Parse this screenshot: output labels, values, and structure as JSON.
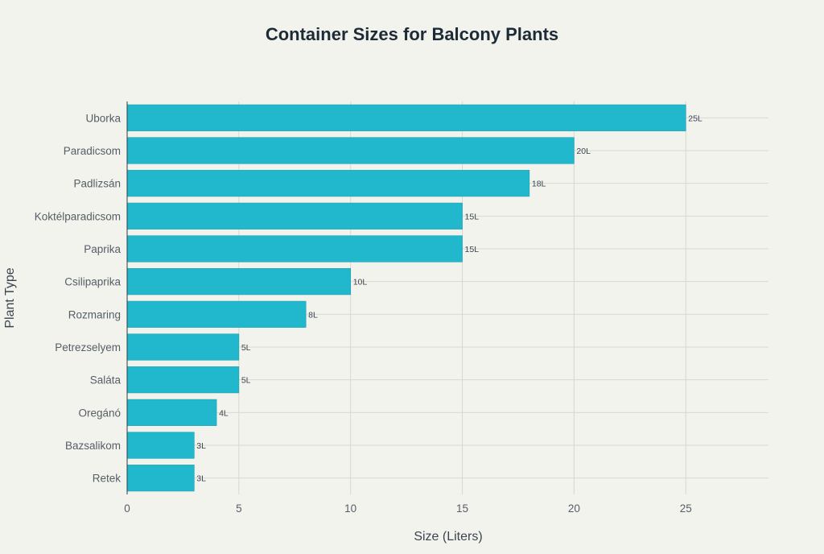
{
  "chart_data": {
    "type": "bar",
    "orientation": "horizontal",
    "title": "Container Sizes for Balcony Plants",
    "xlabel": "Size (Liters)",
    "ylabel": "Plant Type",
    "categories": [
      "Uborka",
      "Paradicsom",
      "Padlizsán",
      "Koktélparadicsom",
      "Paprika",
      "Csilipaprika",
      "Rozmaring",
      "Petrezselyem",
      "Saláta",
      "Oregánó",
      "Bazsalikom",
      "Retek"
    ],
    "values": [
      25,
      20,
      18,
      15,
      15,
      10,
      8,
      5,
      5,
      4,
      3,
      3
    ],
    "data_labels": [
      "25L",
      "20L",
      "18L",
      "15L",
      "15L",
      "10L",
      "8L",
      "5L",
      "5L",
      "4L",
      "3L",
      "3L"
    ],
    "xlim": [
      0,
      28.7
    ],
    "xticks": [
      0,
      5,
      10,
      15,
      20,
      25
    ],
    "grid": true,
    "bar_color": "#21b8cd"
  }
}
